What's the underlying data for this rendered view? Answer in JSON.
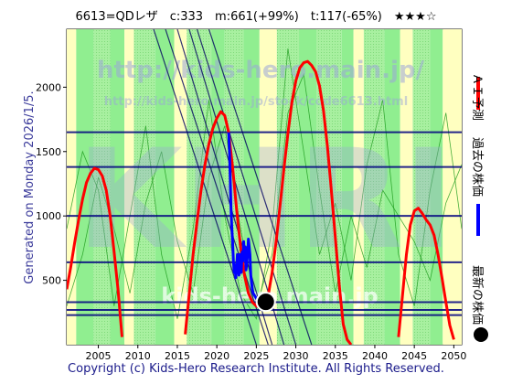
{
  "header": {
    "title_line": "6613=QDレザ　c:333　m:661(+99%)　t:117(-65%)　★★★☆"
  },
  "side_left": {
    "generated": "Generated on Monday 2026/1/5."
  },
  "side_right": {
    "ai_forecast": "ＡＩ予測",
    "past_price": "過去の株価",
    "latest_price": "最新の株価"
  },
  "footer": {
    "copyright": "Copyright (c) Kids-Hero Research Institute. All Rights Reserved."
  },
  "watermarks": {
    "url_main": "http://kids-hero.main.jp/",
    "url_page": "http://kids-hero.main.jp/stock/code6613.html",
    "domain": "kids-hero.main.jp",
    "logo": "KHRI"
  },
  "colors": {
    "forecast": "#ff0000",
    "past": "#0000ff",
    "latest": "#000000",
    "band_green": "#90ee90",
    "band_yellow": "#ffffc0",
    "hline": "#000080",
    "grid_text": "#000080",
    "copyright": "#1a1a8a"
  },
  "chart_data": {
    "type": "line",
    "title": "6613=QDレザ　c:333　m:661(+99%)　t:117(-65%)　★★★☆",
    "xlim": [
      2001,
      2051
    ],
    "ylim": [
      0,
      2450
    ],
    "x_ticks": [
      2005,
      2010,
      2015,
      2020,
      2025,
      2030,
      2035,
      2040,
      2045,
      2050
    ],
    "y_ticks": [
      500,
      1000,
      1500,
      2000
    ],
    "horizontal_lines": [
      230,
      270,
      330,
      640,
      1000,
      1380,
      1650
    ],
    "trend_lines": [
      {
        "x": [
          2013.5,
          2026.5
        ],
        "y": [
          2450,
          0
        ]
      },
      {
        "x": [
          2015.0,
          2027.0
        ],
        "y": [
          2450,
          0
        ]
      },
      {
        "x": [
          2016.5,
          2028.5
        ],
        "y": [
          2450,
          0
        ]
      },
      {
        "x": [
          2017.5,
          2030.0
        ],
        "y": [
          2450,
          0
        ]
      },
      {
        "x": [
          2019.0,
          2032.0
        ],
        "y": [
          2450,
          0
        ]
      },
      {
        "x": [
          2012.0,
          2025.0
        ],
        "y": [
          2450,
          0
        ]
      }
    ],
    "series": [
      {
        "name": "ＡＩ予測",
        "color": "#ff0000",
        "x": [
          2001,
          2001.5,
          2002,
          2002.5,
          2003,
          2003.5,
          2004,
          2004.5,
          2005,
          2005.5,
          2006,
          2006.5,
          2007,
          2007.5,
          2008,
          2016.0,
          2016.5,
          2017,
          2017.5,
          2018,
          2018.5,
          2019,
          2019.5,
          2020,
          2020.5,
          2021,
          2021.5,
          2022,
          2022.5,
          2023,
          2023.5,
          2024,
          2024.5,
          2025,
          2025.5,
          2026,
          2026.5,
          2027,
          2027.5,
          2028,
          2028.5,
          2029,
          2029.5,
          2030,
          2030.5,
          2031,
          2031.5,
          2032,
          2032.5,
          2033,
          2033.5,
          2034,
          2034.5,
          2035,
          2035.5,
          2036,
          2036.5,
          2037,
          2043.0,
          2043.5,
          2044,
          2044.5,
          2045,
          2045.5,
          2046,
          2046.5,
          2047,
          2047.5,
          2048,
          2048.5,
          2049,
          2049.5,
          2050
        ],
        "y": [
          430,
          600,
          790,
          970,
          1130,
          1260,
          1330,
          1370,
          1360,
          1310,
          1200,
          1000,
          720,
          420,
          60,
          80,
          390,
          700,
          960,
          1200,
          1400,
          1560,
          1680,
          1760,
          1810,
          1780,
          1650,
          1380,
          1050,
          760,
          540,
          400,
          330,
          300,
          290,
          300,
          380,
          560,
          800,
          1080,
          1370,
          1640,
          1880,
          2050,
          2150,
          2190,
          2200,
          2170,
          2120,
          2010,
          1820,
          1540,
          1200,
          830,
          460,
          160,
          40,
          0,
          60,
          380,
          700,
          930,
          1040,
          1060,
          1020,
          970,
          930,
          850,
          700,
          520,
          330,
          150,
          40
        ]
      },
      {
        "name": "過去の株価",
        "color": "#0000ff",
        "x": [
          2021.5,
          2021.6,
          2021.7,
          2021.8,
          2021.9,
          2022.0,
          2022.1,
          2022.2,
          2022.3,
          2022.4,
          2022.5,
          2022.6,
          2022.7,
          2022.8,
          2022.9,
          2023.0,
          2023.1,
          2023.2,
          2023.3,
          2023.4,
          2023.5,
          2023.6,
          2023.7,
          2023.8,
          2023.9,
          2024.0,
          2024.1,
          2024.2,
          2024.3,
          2024.4,
          2024.5,
          2024.6,
          2024.7,
          2024.8,
          2024.9,
          2025.0,
          2025.2,
          2025.4,
          2025.6,
          2025.8
        ],
        "y": [
          1650,
          1500,
          1300,
          1050,
          900,
          800,
          650,
          560,
          620,
          520,
          600,
          700,
          600,
          540,
          700,
          620,
          560,
          720,
          650,
          800,
          700,
          760,
          580,
          640,
          700,
          820,
          760,
          700,
          540,
          480,
          430,
          400,
          390,
          380,
          370,
          360,
          340,
          320,
          300,
          290
        ]
      }
    ],
    "latest_point": {
      "label": "最新の株価",
      "x": 2026.2,
      "y": 333
    }
  }
}
